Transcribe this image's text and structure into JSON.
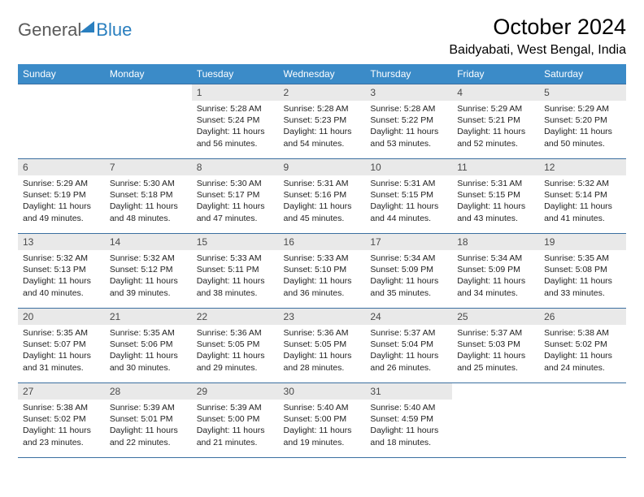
{
  "brand": {
    "part1": "General",
    "part2": "Blue"
  },
  "title": "October 2024",
  "location": "Baidyabati, West Bengal, India",
  "colors": {
    "header_bg": "#3b8bc8",
    "header_fg": "#ffffff",
    "daynum_bg": "#e9e9e9",
    "rule": "#3b6fa0",
    "brand_gray": "#5a5a5a",
    "brand_blue": "#2a7fbf"
  },
  "days_of_week": [
    "Sunday",
    "Monday",
    "Tuesday",
    "Wednesday",
    "Thursday",
    "Friday",
    "Saturday"
  ],
  "weeks": [
    [
      null,
      null,
      {
        "n": "1",
        "sr": "Sunrise: 5:28 AM",
        "ss": "Sunset: 5:24 PM",
        "dl1": "Daylight: 11 hours",
        "dl2": "and 56 minutes."
      },
      {
        "n": "2",
        "sr": "Sunrise: 5:28 AM",
        "ss": "Sunset: 5:23 PM",
        "dl1": "Daylight: 11 hours",
        "dl2": "and 54 minutes."
      },
      {
        "n": "3",
        "sr": "Sunrise: 5:28 AM",
        "ss": "Sunset: 5:22 PM",
        "dl1": "Daylight: 11 hours",
        "dl2": "and 53 minutes."
      },
      {
        "n": "4",
        "sr": "Sunrise: 5:29 AM",
        "ss": "Sunset: 5:21 PM",
        "dl1": "Daylight: 11 hours",
        "dl2": "and 52 minutes."
      },
      {
        "n": "5",
        "sr": "Sunrise: 5:29 AM",
        "ss": "Sunset: 5:20 PM",
        "dl1": "Daylight: 11 hours",
        "dl2": "and 50 minutes."
      }
    ],
    [
      {
        "n": "6",
        "sr": "Sunrise: 5:29 AM",
        "ss": "Sunset: 5:19 PM",
        "dl1": "Daylight: 11 hours",
        "dl2": "and 49 minutes."
      },
      {
        "n": "7",
        "sr": "Sunrise: 5:30 AM",
        "ss": "Sunset: 5:18 PM",
        "dl1": "Daylight: 11 hours",
        "dl2": "and 48 minutes."
      },
      {
        "n": "8",
        "sr": "Sunrise: 5:30 AM",
        "ss": "Sunset: 5:17 PM",
        "dl1": "Daylight: 11 hours",
        "dl2": "and 47 minutes."
      },
      {
        "n": "9",
        "sr": "Sunrise: 5:31 AM",
        "ss": "Sunset: 5:16 PM",
        "dl1": "Daylight: 11 hours",
        "dl2": "and 45 minutes."
      },
      {
        "n": "10",
        "sr": "Sunrise: 5:31 AM",
        "ss": "Sunset: 5:15 PM",
        "dl1": "Daylight: 11 hours",
        "dl2": "and 44 minutes."
      },
      {
        "n": "11",
        "sr": "Sunrise: 5:31 AM",
        "ss": "Sunset: 5:15 PM",
        "dl1": "Daylight: 11 hours",
        "dl2": "and 43 minutes."
      },
      {
        "n": "12",
        "sr": "Sunrise: 5:32 AM",
        "ss": "Sunset: 5:14 PM",
        "dl1": "Daylight: 11 hours",
        "dl2": "and 41 minutes."
      }
    ],
    [
      {
        "n": "13",
        "sr": "Sunrise: 5:32 AM",
        "ss": "Sunset: 5:13 PM",
        "dl1": "Daylight: 11 hours",
        "dl2": "and 40 minutes."
      },
      {
        "n": "14",
        "sr": "Sunrise: 5:32 AM",
        "ss": "Sunset: 5:12 PM",
        "dl1": "Daylight: 11 hours",
        "dl2": "and 39 minutes."
      },
      {
        "n": "15",
        "sr": "Sunrise: 5:33 AM",
        "ss": "Sunset: 5:11 PM",
        "dl1": "Daylight: 11 hours",
        "dl2": "and 38 minutes."
      },
      {
        "n": "16",
        "sr": "Sunrise: 5:33 AM",
        "ss": "Sunset: 5:10 PM",
        "dl1": "Daylight: 11 hours",
        "dl2": "and 36 minutes."
      },
      {
        "n": "17",
        "sr": "Sunrise: 5:34 AM",
        "ss": "Sunset: 5:09 PM",
        "dl1": "Daylight: 11 hours",
        "dl2": "and 35 minutes."
      },
      {
        "n": "18",
        "sr": "Sunrise: 5:34 AM",
        "ss": "Sunset: 5:09 PM",
        "dl1": "Daylight: 11 hours",
        "dl2": "and 34 minutes."
      },
      {
        "n": "19",
        "sr": "Sunrise: 5:35 AM",
        "ss": "Sunset: 5:08 PM",
        "dl1": "Daylight: 11 hours",
        "dl2": "and 33 minutes."
      }
    ],
    [
      {
        "n": "20",
        "sr": "Sunrise: 5:35 AM",
        "ss": "Sunset: 5:07 PM",
        "dl1": "Daylight: 11 hours",
        "dl2": "and 31 minutes."
      },
      {
        "n": "21",
        "sr": "Sunrise: 5:35 AM",
        "ss": "Sunset: 5:06 PM",
        "dl1": "Daylight: 11 hours",
        "dl2": "and 30 minutes."
      },
      {
        "n": "22",
        "sr": "Sunrise: 5:36 AM",
        "ss": "Sunset: 5:05 PM",
        "dl1": "Daylight: 11 hours",
        "dl2": "and 29 minutes."
      },
      {
        "n": "23",
        "sr": "Sunrise: 5:36 AM",
        "ss": "Sunset: 5:05 PM",
        "dl1": "Daylight: 11 hours",
        "dl2": "and 28 minutes."
      },
      {
        "n": "24",
        "sr": "Sunrise: 5:37 AM",
        "ss": "Sunset: 5:04 PM",
        "dl1": "Daylight: 11 hours",
        "dl2": "and 26 minutes."
      },
      {
        "n": "25",
        "sr": "Sunrise: 5:37 AM",
        "ss": "Sunset: 5:03 PM",
        "dl1": "Daylight: 11 hours",
        "dl2": "and 25 minutes."
      },
      {
        "n": "26",
        "sr": "Sunrise: 5:38 AM",
        "ss": "Sunset: 5:02 PM",
        "dl1": "Daylight: 11 hours",
        "dl2": "and 24 minutes."
      }
    ],
    [
      {
        "n": "27",
        "sr": "Sunrise: 5:38 AM",
        "ss": "Sunset: 5:02 PM",
        "dl1": "Daylight: 11 hours",
        "dl2": "and 23 minutes."
      },
      {
        "n": "28",
        "sr": "Sunrise: 5:39 AM",
        "ss": "Sunset: 5:01 PM",
        "dl1": "Daylight: 11 hours",
        "dl2": "and 22 minutes."
      },
      {
        "n": "29",
        "sr": "Sunrise: 5:39 AM",
        "ss": "Sunset: 5:00 PM",
        "dl1": "Daylight: 11 hours",
        "dl2": "and 21 minutes."
      },
      {
        "n": "30",
        "sr": "Sunrise: 5:40 AM",
        "ss": "Sunset: 5:00 PM",
        "dl1": "Daylight: 11 hours",
        "dl2": "and 19 minutes."
      },
      {
        "n": "31",
        "sr": "Sunrise: 5:40 AM",
        "ss": "Sunset: 4:59 PM",
        "dl1": "Daylight: 11 hours",
        "dl2": "and 18 minutes."
      },
      null,
      null
    ]
  ]
}
